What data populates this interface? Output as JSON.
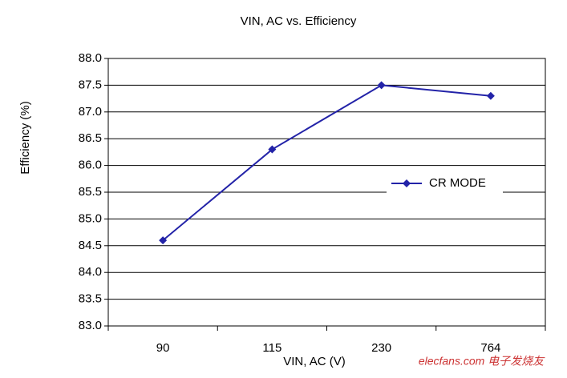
{
  "chart_data": {
    "type": "line",
    "title": "VIN, AC vs. Efficiency",
    "x_label": "VIN, AC (V)",
    "y_label": "Efficiency (%)",
    "categories": [
      "90",
      "115",
      "230",
      "764"
    ],
    "series": [
      {
        "name": "CR MODE",
        "color": "#2323a8",
        "values": [
          84.6,
          86.3,
          87.5,
          87.3
        ]
      }
    ],
    "ylim": [
      83,
      88
    ],
    "yticks": [
      {
        "value": 83,
        "label": "83.0"
      },
      83.5,
      {
        "value": 84,
        "label": "84.0"
      },
      84.5,
      {
        "value": 85,
        "label": "85.0"
      },
      85.5,
      {
        "value": 86,
        "label": "86.0"
      },
      86.5,
      {
        "value": 87,
        "label": "87.0"
      },
      87.5,
      {
        "value": 88,
        "label": "88.0"
      }
    ],
    "grid": true,
    "legend": "right",
    "watermark": "elecfans.com 电子发烧友"
  }
}
